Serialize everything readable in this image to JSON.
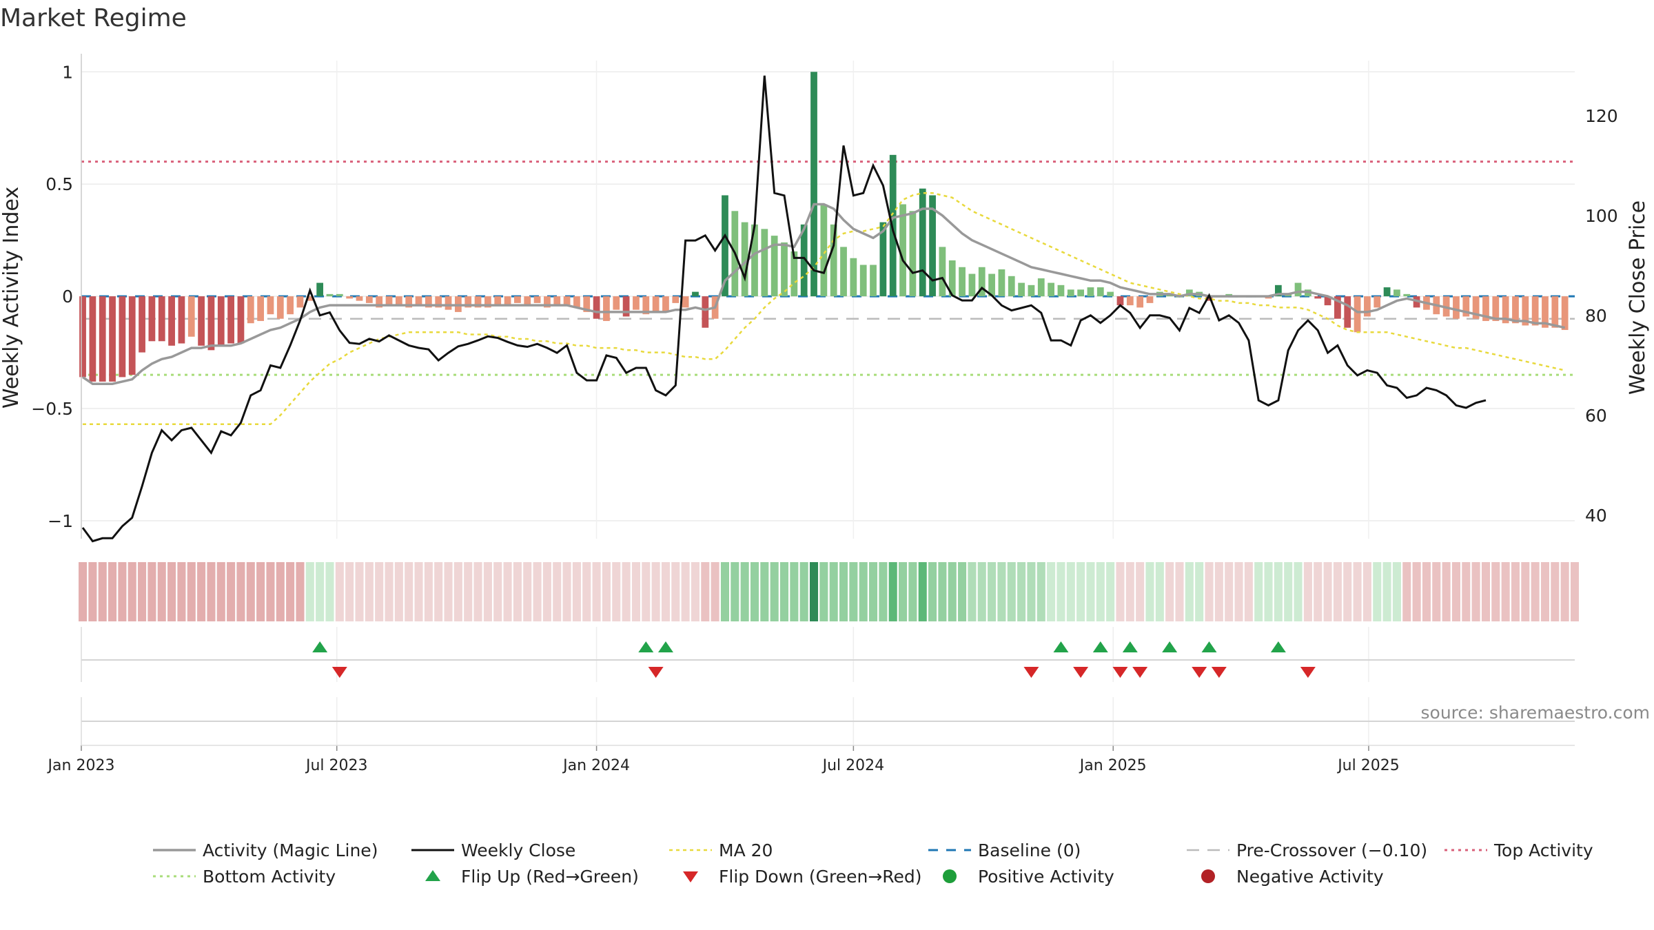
{
  "chart_data": {
    "type": "bar",
    "title": "Market Regime",
    "source": "source: sharemaestro.com",
    "ylabel_left": "Weekly Activity Index",
    "ylabel_right": "Weekly Close Price",
    "left_ticks": [
      {
        "v": 1,
        "label": "1"
      },
      {
        "v": 0.5,
        "label": "0.5"
      },
      {
        "v": 0,
        "label": "0"
      },
      {
        "v": -0.5,
        "label": "−0.5"
      },
      {
        "v": -1,
        "label": "−1"
      }
    ],
    "right_ticks": [
      {
        "v": 120,
        "label": "120"
      },
      {
        "v": 100,
        "label": "100"
      },
      {
        "v": 80,
        "label": "80"
      },
      {
        "v": 60,
        "label": "60"
      },
      {
        "v": 40,
        "label": "40"
      }
    ],
    "ylim_left": [
      -1.08,
      1.05
    ],
    "ylim_right": [
      35.3,
      131
    ],
    "x_start": "2023-01-02",
    "x_ticks": [
      {
        "date": "2023-01-01",
        "label": "Jan 2023"
      },
      {
        "date": "2023-07-01",
        "label": "Jul 2023"
      },
      {
        "date": "2024-01-01",
        "label": "Jan 2024"
      },
      {
        "date": "2024-07-01",
        "label": "Jul 2024"
      },
      {
        "date": "2025-01-01",
        "label": "Jan 2025"
      },
      {
        "date": "2025-07-01",
        "label": "Jul 2025"
      }
    ],
    "reference_lines": {
      "top_activity": 0.6,
      "bottom_activity": -0.35,
      "pre_crossover": -0.1,
      "baseline": 0
    },
    "grid": true,
    "legend_position": "bottom",
    "colors": {
      "strong_green": "#2e8b57",
      "light_green": "#7fbf7b",
      "strong_red": "#c45457",
      "light_red": "#e8967a",
      "close": "#111111",
      "magic": "#999999",
      "ma20": "#e8d93c",
      "baseline": "#1f77b4",
      "pre_crossover": "#bbbbbb",
      "top": "#d9607a",
      "bottom": "#a8dc7a",
      "flip_up": "#22a34a",
      "flip_down": "#d62728",
      "positive": "#1e9e3a",
      "negative": "#b22226"
    },
    "activity": [
      -0.36,
      -0.38,
      -0.38,
      -0.38,
      -0.36,
      -0.35,
      -0.25,
      -0.2,
      -0.2,
      -0.22,
      -0.21,
      -0.18,
      -0.22,
      -0.24,
      -0.22,
      -0.21,
      -0.21,
      -0.12,
      -0.11,
      -0.08,
      -0.1,
      -0.08,
      -0.05,
      -0.02,
      0.06,
      0.01,
      0.01,
      -0.01,
      -0.02,
      -0.03,
      -0.05,
      -0.04,
      -0.04,
      -0.05,
      -0.04,
      -0.05,
      -0.05,
      -0.06,
      -0.07,
      -0.05,
      -0.05,
      -0.05,
      -0.04,
      -0.04,
      -0.03,
      -0.04,
      -0.03,
      -0.05,
      -0.04,
      -0.04,
      -0.05,
      -0.07,
      -0.1,
      -0.11,
      -0.06,
      -0.09,
      -0.06,
      -0.08,
      -0.07,
      -0.07,
      -0.03,
      -0.05,
      0.02,
      -0.14,
      -0.1,
      0.45,
      0.38,
      0.33,
      0.32,
      0.3,
      0.27,
      0.24,
      0.2,
      0.32,
      1.0,
      0.41,
      0.32,
      0.22,
      0.17,
      0.14,
      0.14,
      0.33,
      0.63,
      0.41,
      0.38,
      0.48,
      0.45,
      0.22,
      0.16,
      0.13,
      0.1,
      0.13,
      0.1,
      0.12,
      0.09,
      0.06,
      0.05,
      0.08,
      0.06,
      0.05,
      0.03,
      0.03,
      0.04,
      0.04,
      0.02,
      -0.04,
      -0.04,
      -0.05,
      -0.03,
      0.02,
      0.01,
      0.0,
      0.03,
      0.02,
      -0.02,
      0.0,
      0.01,
      0.0,
      0.0,
      0.0,
      -0.01,
      0.05,
      0.01,
      0.06,
      0.03,
      -0.01,
      -0.04,
      -0.1,
      -0.14,
      -0.16,
      -0.09,
      -0.05,
      0.04,
      0.03,
      0.01,
      -0.05,
      -0.06,
      -0.08,
      -0.09,
      -0.1,
      -0.09,
      -0.1,
      -0.11,
      -0.11,
      -0.12,
      -0.12,
      -0.13,
      -0.13,
      -0.14,
      -0.14,
      -0.15
    ],
    "close": [
      37.5,
      34.8,
      35.4,
      35.4,
      37.8,
      39.5,
      45.8,
      52.5,
      57.0,
      55.0,
      57.0,
      57.5,
      55.0,
      52.5,
      56.8,
      56.0,
      58.5,
      64.0,
      65.0,
      70.0,
      69.5,
      74.0,
      79.0,
      85.0,
      80.0,
      80.6,
      77.0,
      74.5,
      74.3,
      75.3,
      74.8,
      76.0,
      75.0,
      74.0,
      73.5,
      73.2,
      71.0,
      72.5,
      73.8,
      74.3,
      75.0,
      75.8,
      75.5,
      74.7,
      74.0,
      73.7,
      74.3,
      73.5,
      72.5,
      74.0,
      68.5,
      67.0,
      67.0,
      72.0,
      71.5,
      68.5,
      69.5,
      69.5,
      65.0,
      64.0,
      66.0,
      95.0,
      95.0,
      96.0,
      93.0,
      96.0,
      92.5,
      87.5,
      98.0,
      128.0,
      104.5,
      104.0,
      91.5,
      91.5,
      89.0,
      88.5,
      94.0,
      114.0,
      104.0,
      104.5,
      110.0,
      106.0,
      97.0,
      91.0,
      88.5,
      89.0,
      87.0,
      87.5,
      84.0,
      83.0,
      83.0,
      85.5,
      84.0,
      82.0,
      81.0,
      81.5,
      82.0,
      80.5,
      75.0,
      75.0,
      74.0,
      79.0,
      80.0,
      78.5,
      80.0,
      82.0,
      80.5,
      77.5,
      80.0,
      80.0,
      79.5,
      77.0,
      81.5,
      80.5,
      84.0,
      79.0,
      80.0,
      78.5,
      75.0,
      63.0,
      62.0,
      63.0,
      73.0,
      77.0,
      79.0,
      77.0,
      72.5,
      74.0,
      70.0,
      68.0,
      69.0,
      68.5,
      66.0,
      65.5,
      63.5,
      64.0,
      65.5,
      65.0,
      64.0,
      62.0,
      61.5,
      62.5,
      63.0
    ],
    "magic_line": [
      -0.36,
      -0.39,
      -0.39,
      -0.39,
      -0.38,
      -0.37,
      -0.33,
      -0.3,
      -0.28,
      -0.27,
      -0.25,
      -0.23,
      -0.23,
      -0.22,
      -0.22,
      -0.22,
      -0.21,
      -0.19,
      -0.17,
      -0.15,
      -0.14,
      -0.12,
      -0.1,
      -0.07,
      -0.05,
      -0.04,
      -0.04,
      -0.04,
      -0.04,
      -0.04,
      -0.04,
      -0.04,
      -0.04,
      -0.04,
      -0.04,
      -0.04,
      -0.04,
      -0.04,
      -0.04,
      -0.04,
      -0.04,
      -0.04,
      -0.04,
      -0.04,
      -0.04,
      -0.04,
      -0.04,
      -0.04,
      -0.04,
      -0.04,
      -0.05,
      -0.06,
      -0.07,
      -0.07,
      -0.07,
      -0.07,
      -0.07,
      -0.07,
      -0.07,
      -0.07,
      -0.06,
      -0.06,
      -0.05,
      -0.06,
      -0.05,
      0.07,
      0.11,
      0.15,
      0.19,
      0.21,
      0.23,
      0.23,
      0.22,
      0.3,
      0.41,
      0.41,
      0.39,
      0.34,
      0.3,
      0.28,
      0.26,
      0.29,
      0.35,
      0.36,
      0.37,
      0.39,
      0.39,
      0.36,
      0.32,
      0.28,
      0.25,
      0.23,
      0.21,
      0.19,
      0.17,
      0.15,
      0.13,
      0.12,
      0.11,
      0.1,
      0.09,
      0.08,
      0.07,
      0.07,
      0.06,
      0.04,
      0.03,
      0.02,
      0.01,
      0.01,
      0.01,
      0.0,
      0.01,
      0.01,
      0.0,
      0.0,
      0.0,
      0.0,
      0.0,
      0.0,
      0.0,
      0.01,
      0.01,
      0.02,
      0.02,
      0.01,
      0.0,
      -0.02,
      -0.04,
      -0.07,
      -0.07,
      -0.06,
      -0.04,
      -0.02,
      -0.01,
      -0.02,
      -0.03,
      -0.04,
      -0.05,
      -0.06,
      -0.07,
      -0.08,
      -0.09,
      -0.1,
      -0.1,
      -0.11,
      -0.11,
      -0.12,
      -0.12,
      -0.13,
      -0.14
    ],
    "ma20": [
      -0.57,
      -0.57,
      -0.57,
      -0.57,
      -0.57,
      -0.57,
      -0.57,
      -0.57,
      -0.57,
      -0.57,
      -0.57,
      -0.57,
      -0.57,
      -0.57,
      -0.57,
      -0.57,
      -0.57,
      -0.57,
      -0.57,
      -0.57,
      -0.53,
      -0.48,
      -0.43,
      -0.38,
      -0.34,
      -0.3,
      -0.28,
      -0.25,
      -0.23,
      -0.21,
      -0.19,
      -0.18,
      -0.17,
      -0.16,
      -0.16,
      -0.16,
      -0.16,
      -0.16,
      -0.16,
      -0.17,
      -0.17,
      -0.17,
      -0.18,
      -0.18,
      -0.19,
      -0.19,
      -0.2,
      -0.2,
      -0.21,
      -0.21,
      -0.22,
      -0.22,
      -0.23,
      -0.23,
      -0.23,
      -0.24,
      -0.24,
      -0.25,
      -0.25,
      -0.25,
      -0.26,
      -0.27,
      -0.27,
      -0.28,
      -0.28,
      -0.24,
      -0.19,
      -0.14,
      -0.1,
      -0.05,
      -0.01,
      0.02,
      0.06,
      0.09,
      0.13,
      0.19,
      0.25,
      0.28,
      0.29,
      0.29,
      0.3,
      0.31,
      0.37,
      0.43,
      0.45,
      0.46,
      0.46,
      0.45,
      0.44,
      0.41,
      0.38,
      0.36,
      0.34,
      0.32,
      0.3,
      0.28,
      0.26,
      0.24,
      0.22,
      0.2,
      0.18,
      0.16,
      0.14,
      0.12,
      0.1,
      0.08,
      0.06,
      0.05,
      0.04,
      0.03,
      0.02,
      0.01,
      0.0,
      -0.01,
      -0.01,
      -0.02,
      -0.02,
      -0.03,
      -0.03,
      -0.04,
      -0.04,
      -0.05,
      -0.05,
      -0.05,
      -0.06,
      -0.08,
      -0.1,
      -0.13,
      -0.15,
      -0.16,
      -0.16,
      -0.16,
      -0.16,
      -0.17,
      -0.18,
      -0.19,
      -0.2,
      -0.21,
      -0.22,
      -0.23,
      -0.23,
      -0.24,
      -0.25,
      -0.26,
      -0.27,
      -0.28,
      -0.29,
      -0.3,
      -0.31,
      -0.32,
      -0.33
    ],
    "regime_strip": [
      -0.55,
      -0.55,
      -0.55,
      -0.55,
      -0.55,
      -0.55,
      -0.55,
      -0.55,
      -0.55,
      -0.55,
      -0.55,
      -0.55,
      -0.55,
      -0.55,
      -0.55,
      -0.55,
      -0.55,
      -0.55,
      -0.55,
      -0.55,
      -0.55,
      -0.55,
      -0.55,
      0.35,
      0.35,
      0.35,
      -0.3,
      -0.3,
      -0.3,
      -0.3,
      -0.3,
      -0.3,
      -0.3,
      -0.3,
      -0.3,
      -0.3,
      -0.3,
      -0.3,
      -0.3,
      -0.3,
      -0.3,
      -0.3,
      -0.3,
      -0.3,
      -0.3,
      -0.3,
      -0.3,
      -0.3,
      -0.3,
      -0.3,
      -0.3,
      -0.3,
      -0.3,
      -0.3,
      -0.3,
      -0.3,
      -0.3,
      -0.3,
      -0.3,
      -0.3,
      -0.3,
      -0.3,
      -0.3,
      -0.35,
      -0.35,
      0.7,
      0.7,
      0.7,
      0.7,
      0.7,
      0.7,
      0.7,
      0.7,
      0.7,
      1.0,
      0.7,
      0.7,
      0.7,
      0.7,
      0.7,
      0.7,
      0.7,
      0.85,
      0.7,
      0.7,
      0.85,
      0.7,
      0.6,
      0.6,
      0.6,
      0.5,
      0.5,
      0.5,
      0.5,
      0.45,
      0.45,
      0.45,
      0.45,
      0.4,
      0.4,
      0.35,
      0.35,
      0.35,
      0.35,
      0.35,
      -0.3,
      -0.3,
      -0.3,
      0.35,
      0.35,
      -0.3,
      -0.3,
      0.4,
      0.4,
      -0.3,
      -0.3,
      -0.3,
      -0.3,
      -0.3,
      0.4,
      0.4,
      0.4,
      0.4,
      0.35,
      -0.3,
      -0.3,
      -0.3,
      -0.3,
      -0.3,
      -0.3,
      -0.3,
      0.4,
      0.4,
      0.4,
      -0.35,
      -0.35,
      -0.35,
      -0.35,
      -0.35,
      -0.35,
      -0.35,
      -0.35,
      -0.35,
      -0.35,
      -0.35,
      -0.35,
      -0.35,
      -0.35,
      -0.35,
      -0.35,
      -0.35,
      -0.35
    ],
    "flip_up_dates": [
      "2023-06-19",
      "2024-02-05",
      "2024-02-19",
      "2024-11-25",
      "2024-12-23",
      "2025-01-13",
      "2025-02-10",
      "2025-03-10",
      "2025-04-28"
    ],
    "flip_down_dates": [
      "2023-07-03",
      "2024-02-12",
      "2024-11-04",
      "2024-12-09",
      "2025-01-06",
      "2025-01-20",
      "2025-03-03",
      "2025-03-17",
      "2025-05-19"
    ],
    "legend": [
      {
        "key": "magic",
        "label": "Activity (Magic Line)"
      },
      {
        "key": "close",
        "label": "Weekly Close"
      },
      {
        "key": "ma20",
        "label": "MA 20"
      },
      {
        "key": "baseline",
        "label": "Baseline (0)"
      },
      {
        "key": "pre_crossover",
        "label": "Pre-Crossover (−0.10)"
      },
      {
        "key": "top",
        "label": "Top Activity"
      },
      {
        "key": "bottom",
        "label": "Bottom Activity"
      },
      {
        "key": "flip_up",
        "label": "Flip Up (Red→Green)"
      },
      {
        "key": "flip_down",
        "label": "Flip Down (Green→Red)"
      },
      {
        "key": "positive",
        "label": "Positive Activity"
      },
      {
        "key": "negative",
        "label": "Negative Activity"
      }
    ]
  }
}
